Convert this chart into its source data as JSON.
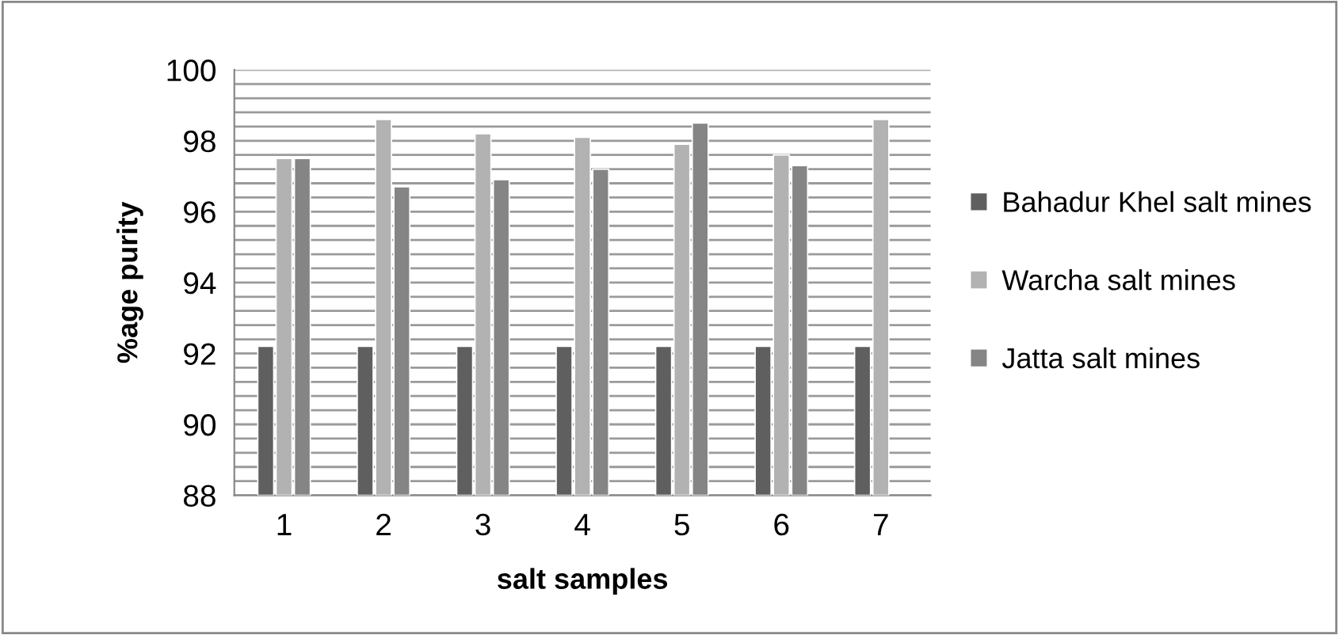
{
  "chart_data": {
    "type": "bar",
    "xlabel": "salt samples",
    "ylabel": "%age purity",
    "categories": [
      "1",
      "2",
      "3",
      "4",
      "5",
      "6",
      "7"
    ],
    "series": [
      {
        "name": "Bahadur Khel salt mines",
        "color": "#5f5f5f",
        "values": [
          92.2,
          92.2,
          92.2,
          92.2,
          92.2,
          92.2,
          92.2
        ]
      },
      {
        "name": "Warcha salt mines",
        "color": "#b2b2b2",
        "values": [
          97.5,
          98.6,
          98.2,
          98.1,
          97.9,
          97.6,
          98.6
        ]
      },
      {
        "name": "Jatta salt mines",
        "color": "#858585",
        "values": [
          97.5,
          96.7,
          96.9,
          97.2,
          98.5,
          97.3,
          null
        ]
      }
    ],
    "ylim": [
      88,
      100
    ],
    "yticks": [
      88,
      {
        "value": 88.4,
        "label": null
      },
      {
        "value": 88.8,
        "label": null
      },
      {
        "value": 89.2,
        "label": null
      },
      {
        "value": 89.6,
        "label": null
      },
      90,
      {
        "value": 90.4,
        "label": null
      },
      {
        "value": 90.8,
        "label": null
      },
      {
        "value": 91.2,
        "label": null
      },
      {
        "value": 91.6,
        "label": null
      },
      92,
      {
        "value": 92.4,
        "label": null
      },
      {
        "value": 92.8,
        "label": null
      },
      {
        "value": 93.2,
        "label": null
      },
      {
        "value": 93.6,
        "label": null
      },
      94,
      {
        "value": 94.4,
        "label": null
      },
      {
        "value": 94.8,
        "label": null
      },
      {
        "value": 95.2,
        "label": null
      },
      {
        "value": 95.6,
        "label": null
      },
      96,
      {
        "value": 96.4,
        "label": null
      },
      {
        "value": 96.8,
        "label": null
      },
      {
        "value": 97.2,
        "label": null
      },
      {
        "value": 97.6,
        "label": null
      },
      98,
      {
        "value": 98.4,
        "label": null
      },
      {
        "value": 98.8,
        "label": null
      },
      {
        "value": 99.2,
        "label": null
      },
      {
        "value": 99.6,
        "label": null
      },
      100
    ],
    "grid": "y",
    "legend": "right"
  }
}
